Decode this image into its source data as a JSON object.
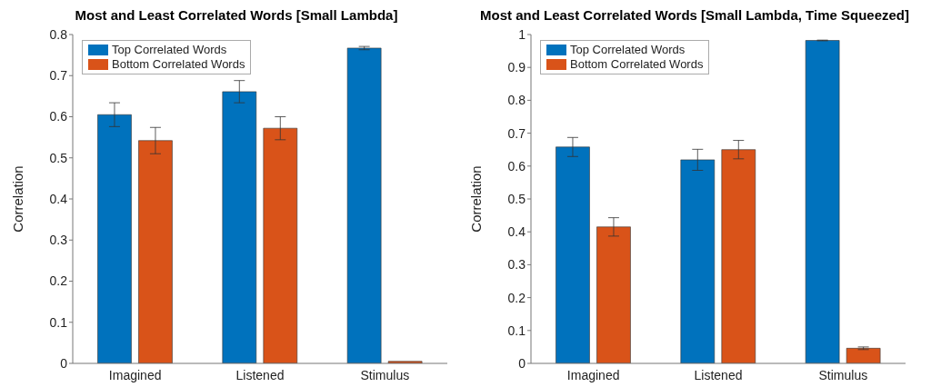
{
  "chart_data": [
    {
      "type": "bar",
      "title": "Most and Least Correlated Words [Small Lambda]",
      "ylabel": "Correlation",
      "categories": [
        "Imagined",
        "Listened",
        "Stimulus"
      ],
      "series": [
        {
          "name": "Top Correlated Words",
          "color": "#0072bd",
          "values": [
            0.605,
            0.661,
            0.767
          ],
          "errors": [
            0.029,
            0.027,
            0.004
          ]
        },
        {
          "name": "Bottom Correlated Words",
          "color": "#d95319",
          "values": [
            0.542,
            0.572,
            0.005
          ],
          "errors": [
            0.032,
            0.028,
            null
          ]
        }
      ],
      "ylim": [
        0,
        0.8
      ],
      "yticks": [
        0,
        0.1,
        0.2,
        0.3,
        0.4,
        0.5,
        0.6,
        0.7,
        0.8
      ],
      "legend": "top left"
    },
    {
      "type": "bar",
      "title": "Most and Least Correlated Words [Small Lambda, Time Squeezed]",
      "ylabel": "Correlation",
      "categories": [
        "Imagined",
        "Listened",
        "Stimulus"
      ],
      "series": [
        {
          "name": "Top Correlated Words",
          "color": "#0072bd",
          "values": [
            0.658,
            0.619,
            0.982
          ],
          "errors": [
            0.029,
            0.032,
            0.001
          ]
        },
        {
          "name": "Bottom Correlated Words",
          "color": "#d95319",
          "values": [
            0.415,
            0.65,
            0.046
          ],
          "errors": [
            0.028,
            0.028,
            0.004
          ]
        }
      ],
      "ylim": [
        0,
        1
      ],
      "yticks": [
        0,
        0.1,
        0.2,
        0.3,
        0.4,
        0.5,
        0.6,
        0.7,
        0.8,
        0.9,
        1
      ],
      "legend": "top left"
    }
  ]
}
